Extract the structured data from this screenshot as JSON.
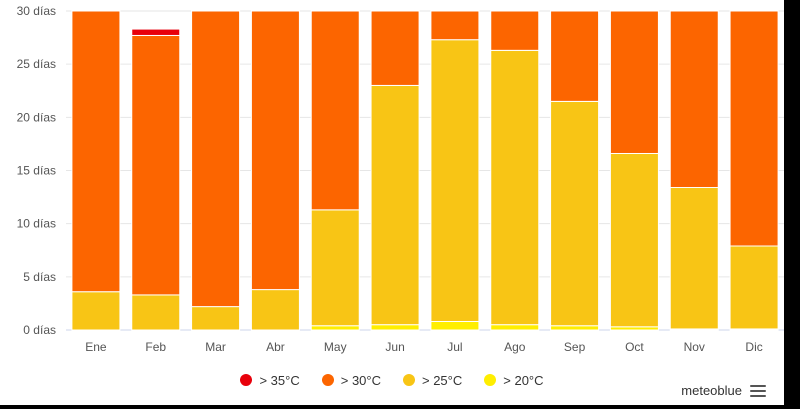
{
  "chart_data": {
    "type": "bar",
    "stacked": true,
    "categories": [
      "Ene",
      "Feb",
      "Mar",
      "Abr",
      "May",
      "Jun",
      "Jul",
      "Ago",
      "Sep",
      "Oct",
      "Nov",
      "Dic"
    ],
    "series": [
      {
        "name": "> 20°C",
        "color": "#ffee00",
        "values": [
          0,
          0,
          0,
          0,
          0.4,
          0.5,
          0.8,
          0.5,
          0.4,
          0.3,
          0.1,
          0.1
        ]
      },
      {
        "name": "> 25°C",
        "color": "#f8c515",
        "values": [
          3.6,
          3.3,
          2.2,
          3.8,
          10.9,
          22.5,
          26.5,
          25.8,
          21.1,
          16.3,
          13.3,
          7.8
        ]
      },
      {
        "name": "> 30°C",
        "color": "#fc6500",
        "values": [
          26.4,
          24.4,
          27.8,
          26.2,
          18.7,
          7.0,
          2.7,
          3.7,
          8.5,
          13.4,
          16.6,
          22.1
        ]
      },
      {
        "name": "> 35°C",
        "color": "#e8000b",
        "values": [
          0,
          0.6,
          0,
          0,
          0,
          0,
          0,
          0,
          0,
          0,
          0,
          0
        ]
      }
    ],
    "y_ticks": [
      "0 días",
      "5 días",
      "10 días",
      "15 días",
      "20 días",
      "25 días",
      "30 días"
    ],
    "y_tick_values": [
      0,
      5,
      10,
      15,
      20,
      25,
      30
    ],
    "ylim": [
      0,
      30
    ],
    "grid": true,
    "legend_position": "bottom-center"
  },
  "legend": {
    "items": [
      {
        "label": "> 35°C",
        "color": "#e8000b"
      },
      {
        "label": "> 30°C",
        "color": "#fc6500"
      },
      {
        "label": "> 25°C",
        "color": "#f8c515"
      },
      {
        "label": "> 20°C",
        "color": "#ffee00"
      }
    ]
  },
  "brand": {
    "text": "meteoblue",
    "menu_icon": "hamburger-menu-icon"
  }
}
